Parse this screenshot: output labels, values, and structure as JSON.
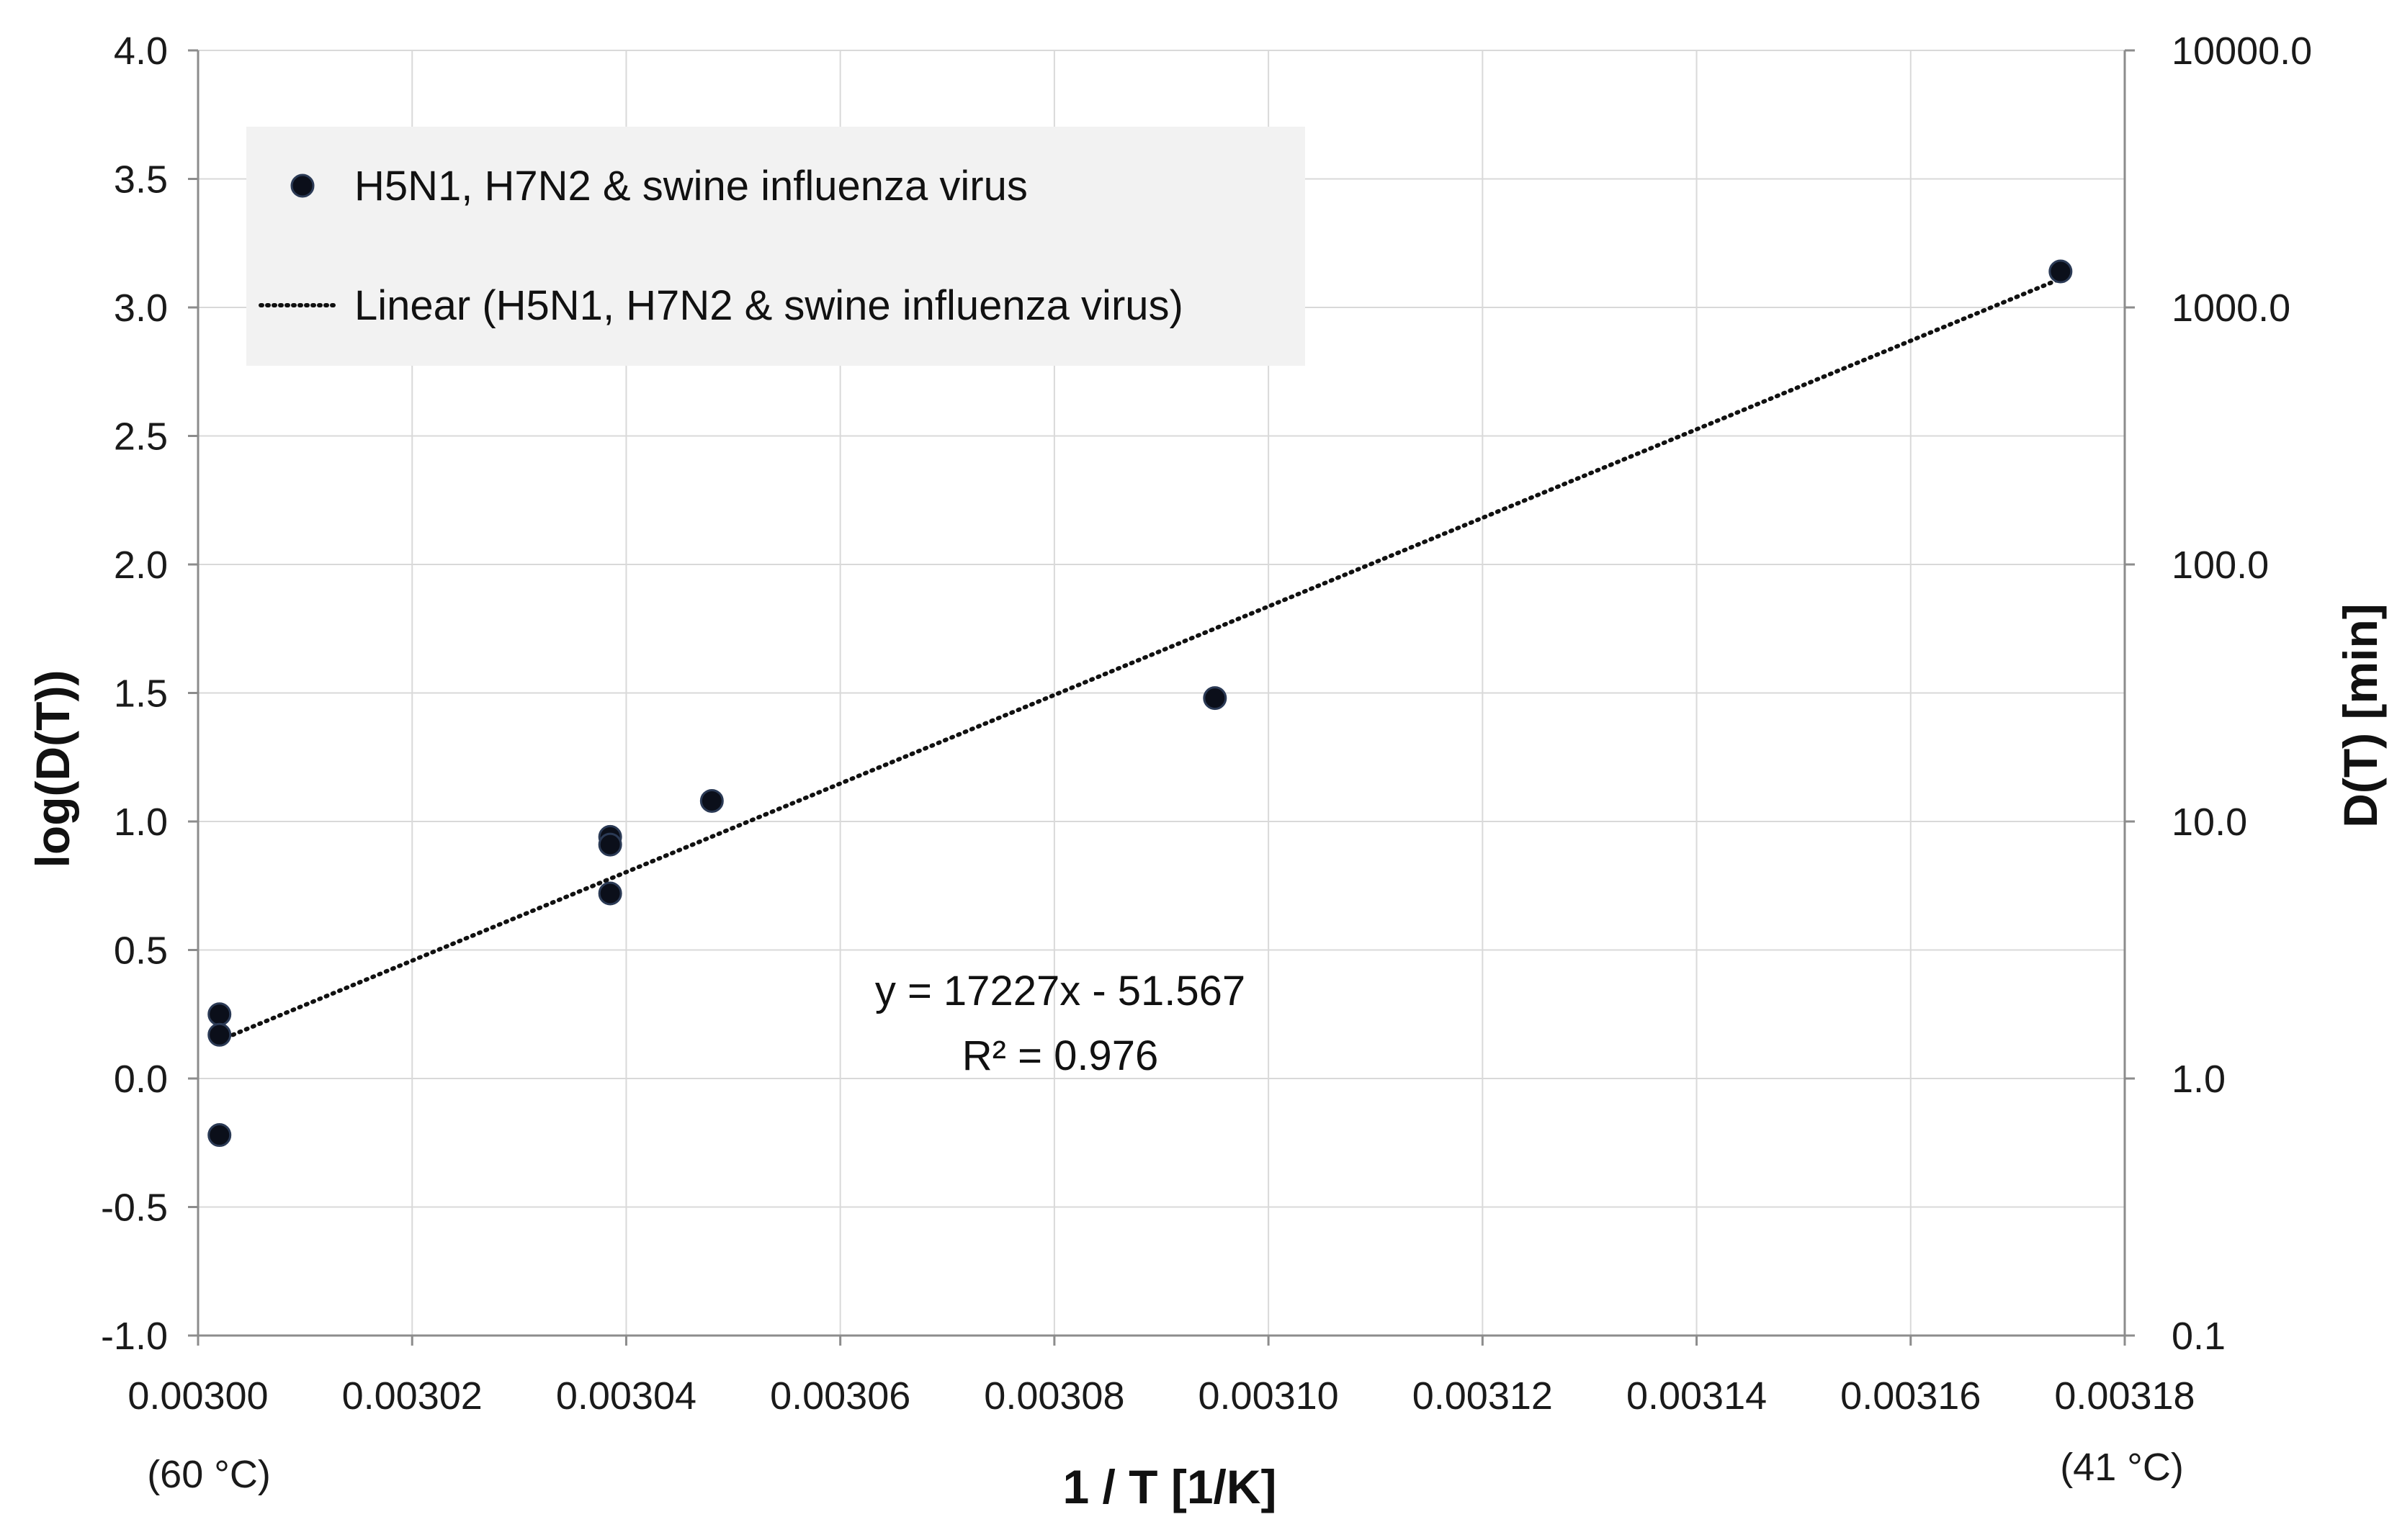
{
  "chart_data": {
    "type": "scatter",
    "title": "",
    "xlabel": "1 / T [1/K]",
    "ylabel": "log(D(T))",
    "y2label": "D(T) [min]",
    "xlim": [
      0.003,
      0.00318
    ],
    "ylim": [
      -1.0,
      4.0
    ],
    "x_ticks": [
      "0.00300",
      "0.00302",
      "0.00304",
      "0.00306",
      "0.00308",
      "0.00310",
      "0.00312",
      "0.00314",
      "0.00316",
      "0.00318"
    ],
    "y_ticks": [
      "-1.0",
      "-0.5",
      "0.0",
      "0.5",
      "1.0",
      "1.5",
      "2.0",
      "2.5",
      "3.0",
      "3.5",
      "4.0"
    ],
    "y2_ticks": [
      "0.1",
      "1.0",
      "10.0",
      "100.0",
      "1000.0",
      "10000.0"
    ],
    "x_annotations": {
      "left": "(60 °C)",
      "right": "(41 °C)"
    },
    "grid": true,
    "legend_position": "top-left",
    "series": [
      {
        "name": "H5N1, H7N2 & swine influenza virus",
        "marker": "circle",
        "color": "#0b0f1a",
        "x": [
          0.003002,
          0.003002,
          0.003002,
          0.0030385,
          0.0030385,
          0.0030385,
          0.003048,
          0.003095,
          0.003174
        ],
        "y": [
          0.25,
          0.17,
          -0.22,
          0.94,
          0.91,
          0.72,
          1.08,
          1.48,
          3.14
        ]
      }
    ],
    "trendline": {
      "name": "Linear (H5N1, H7N2 & swine influenza virus)",
      "style": "dotted",
      "color": "#111111",
      "slope": 17227,
      "intercept": -51.567,
      "x_range": [
        0.003002,
        0.003174
      ],
      "equation": "y = 17227x - 51.567",
      "r_squared": "R² = 0.976"
    }
  }
}
